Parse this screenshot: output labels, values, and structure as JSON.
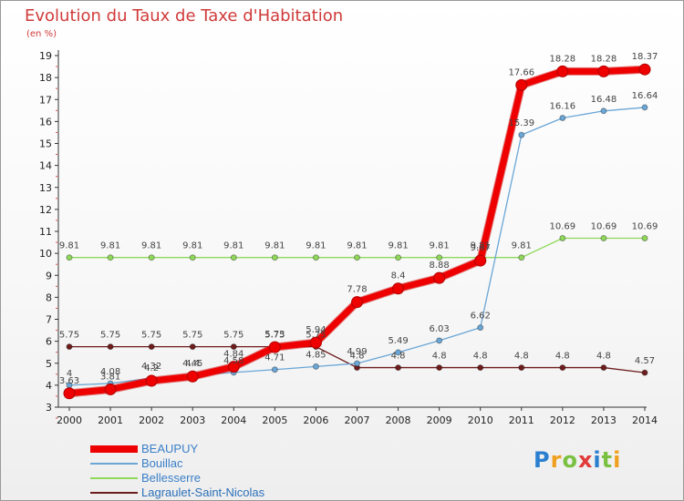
{
  "chart_data": {
    "type": "line",
    "title": "Evolution du Taux de Taxe d'Habitation",
    "unit": "(en %)",
    "x": [
      "2000",
      "2001",
      "2002",
      "2003",
      "2004",
      "2005",
      "2006",
      "2007",
      "2008",
      "2009",
      "2010",
      "2011",
      "2012",
      "2013",
      "2014"
    ],
    "ylim": [
      3,
      19
    ],
    "yticks": [
      3,
      4,
      5,
      6,
      7,
      8,
      9,
      10,
      11,
      12,
      13,
      14,
      15,
      16,
      17,
      18,
      19
    ],
    "grid": false,
    "legend_position": "bottom-left",
    "series": [
      {
        "name": "BEAUPUY",
        "color": "#ee0000",
        "values": [
          3.63,
          3.81,
          4.2,
          4.4,
          4.84,
          5.73,
          5.94,
          7.78,
          8.4,
          8.88,
          9.67,
          17.66,
          18.28,
          18.28,
          18.37
        ],
        "labels": [
          "3.63",
          "3.81",
          "4.2",
          "4.4",
          "4.84",
          "5.73",
          "5.94",
          "7.78",
          "8.4",
          "8.88",
          "9.67",
          "17.66",
          "18.28",
          "18.28",
          "18.37"
        ]
      },
      {
        "name": "Bouillac",
        "color": "#6aa6d6",
        "values": [
          4.0,
          4.08,
          4.32,
          4.45,
          4.58,
          4.71,
          4.85,
          4.99,
          5.49,
          6.03,
          6.62,
          15.39,
          16.16,
          16.48,
          16.64
        ],
        "labels": [
          "4",
          "4.08",
          "4.32",
          "4.45",
          "4.58",
          "4.71",
          "4.85",
          "4.99",
          "5.49",
          "6.03",
          "6.62",
          "15.39",
          "16.16",
          "16.48",
          "16.64"
        ]
      },
      {
        "name": "Bellesserre",
        "color": "#8fd85a",
        "values": [
          9.81,
          9.81,
          9.81,
          9.81,
          9.81,
          9.81,
          9.81,
          9.81,
          9.81,
          9.81,
          9.81,
          9.81,
          10.69,
          10.69,
          10.69
        ],
        "labels": [
          "9.81",
          "9.81",
          "9.81",
          "9.81",
          "9.81",
          "9.81",
          "9.81",
          "9.81",
          "9.81",
          "9.81",
          "9.81",
          "9.81",
          "10.69",
          "10.69",
          "10.69"
        ]
      },
      {
        "name": "Lagraulet-Saint-Nicolas",
        "color": "#6e1c1c",
        "values": [
          5.75,
          5.75,
          5.75,
          5.75,
          5.75,
          5.75,
          5.75,
          4.8,
          4.8,
          4.8,
          4.8,
          4.8,
          4.8,
          4.8,
          4.57
        ],
        "labels": [
          "5.75",
          "5.75",
          "5.75",
          "5.75",
          "5.75",
          "5.75",
          "5.75",
          "4.8",
          "4.8",
          "4.8",
          "4.8",
          "4.8",
          "4.8",
          "4.8",
          "4.57"
        ]
      }
    ]
  },
  "brand": {
    "letters": [
      "P",
      "r",
      "o",
      "x",
      "i",
      "t",
      "i"
    ],
    "colors": [
      "#2a7fd0",
      "#f0a020",
      "#7ac142",
      "#e23a3a",
      "#2a7fd0",
      "#7ac142",
      "#f0a020"
    ]
  }
}
